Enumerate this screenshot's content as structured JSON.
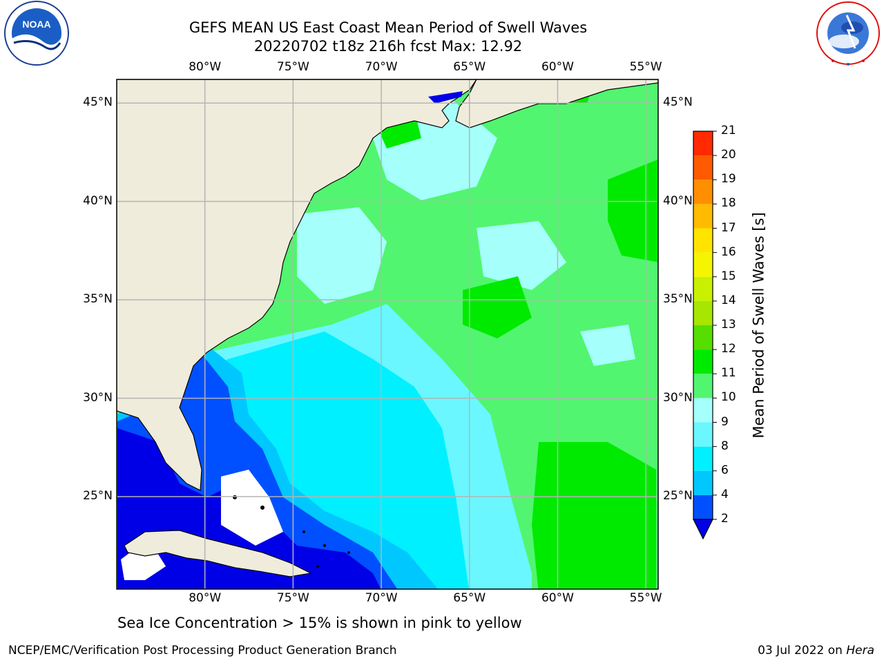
{
  "title": {
    "line1": "GEFS MEAN US East Coast Mean Period of Swell Waves",
    "line2": "20220702 t18z 216h fcst   Max: 12.92"
  },
  "logos": {
    "left": "NOAA",
    "right": "NATIONAL WEATHER SERVICE"
  },
  "map": {
    "lon_labels": [
      "80°W",
      "75°W",
      "70°W",
      "65°W",
      "60°W",
      "55°W"
    ],
    "lat_labels": [
      "45°N",
      "40°N",
      "35°N",
      "30°N",
      "25°N"
    ],
    "lon_range": [
      -85,
      -54.3
    ],
    "lat_range": [
      20.3,
      46.2
    ]
  },
  "colorbar": {
    "label": "Mean Period of Swell Waves [s]",
    "ticks": [
      "2",
      "4",
      "6",
      "8",
      "9",
      "10",
      "11",
      "12",
      "13",
      "14",
      "15",
      "16",
      "17",
      "18",
      "19",
      "20",
      "21"
    ],
    "colors": {
      "extend_low": "#0000e6",
      "2": "#0050ff",
      "4": "#00c8ff",
      "6": "#00f0ff",
      "8": "#6af7ff",
      "9": "#a5fffa",
      "10": "#52f56f",
      "11": "#00ea00",
      "12": "#55de00",
      "13": "#a6e600",
      "14": "#c8f000",
      "15": "#f5f500",
      "16": "#ffe400",
      "17": "#ffbb00",
      "18": "#ff8f00",
      "19": "#ff5a00",
      "20": "#ff2a00"
    }
  },
  "caption": "Sea Ice Concentration > 15% is shown in pink to yellow",
  "footer": {
    "left": "NCEP/EMC/Verification Post Processing Product Generation Branch",
    "date": "03 Jul 2022 on ",
    "host": "Hera"
  }
}
